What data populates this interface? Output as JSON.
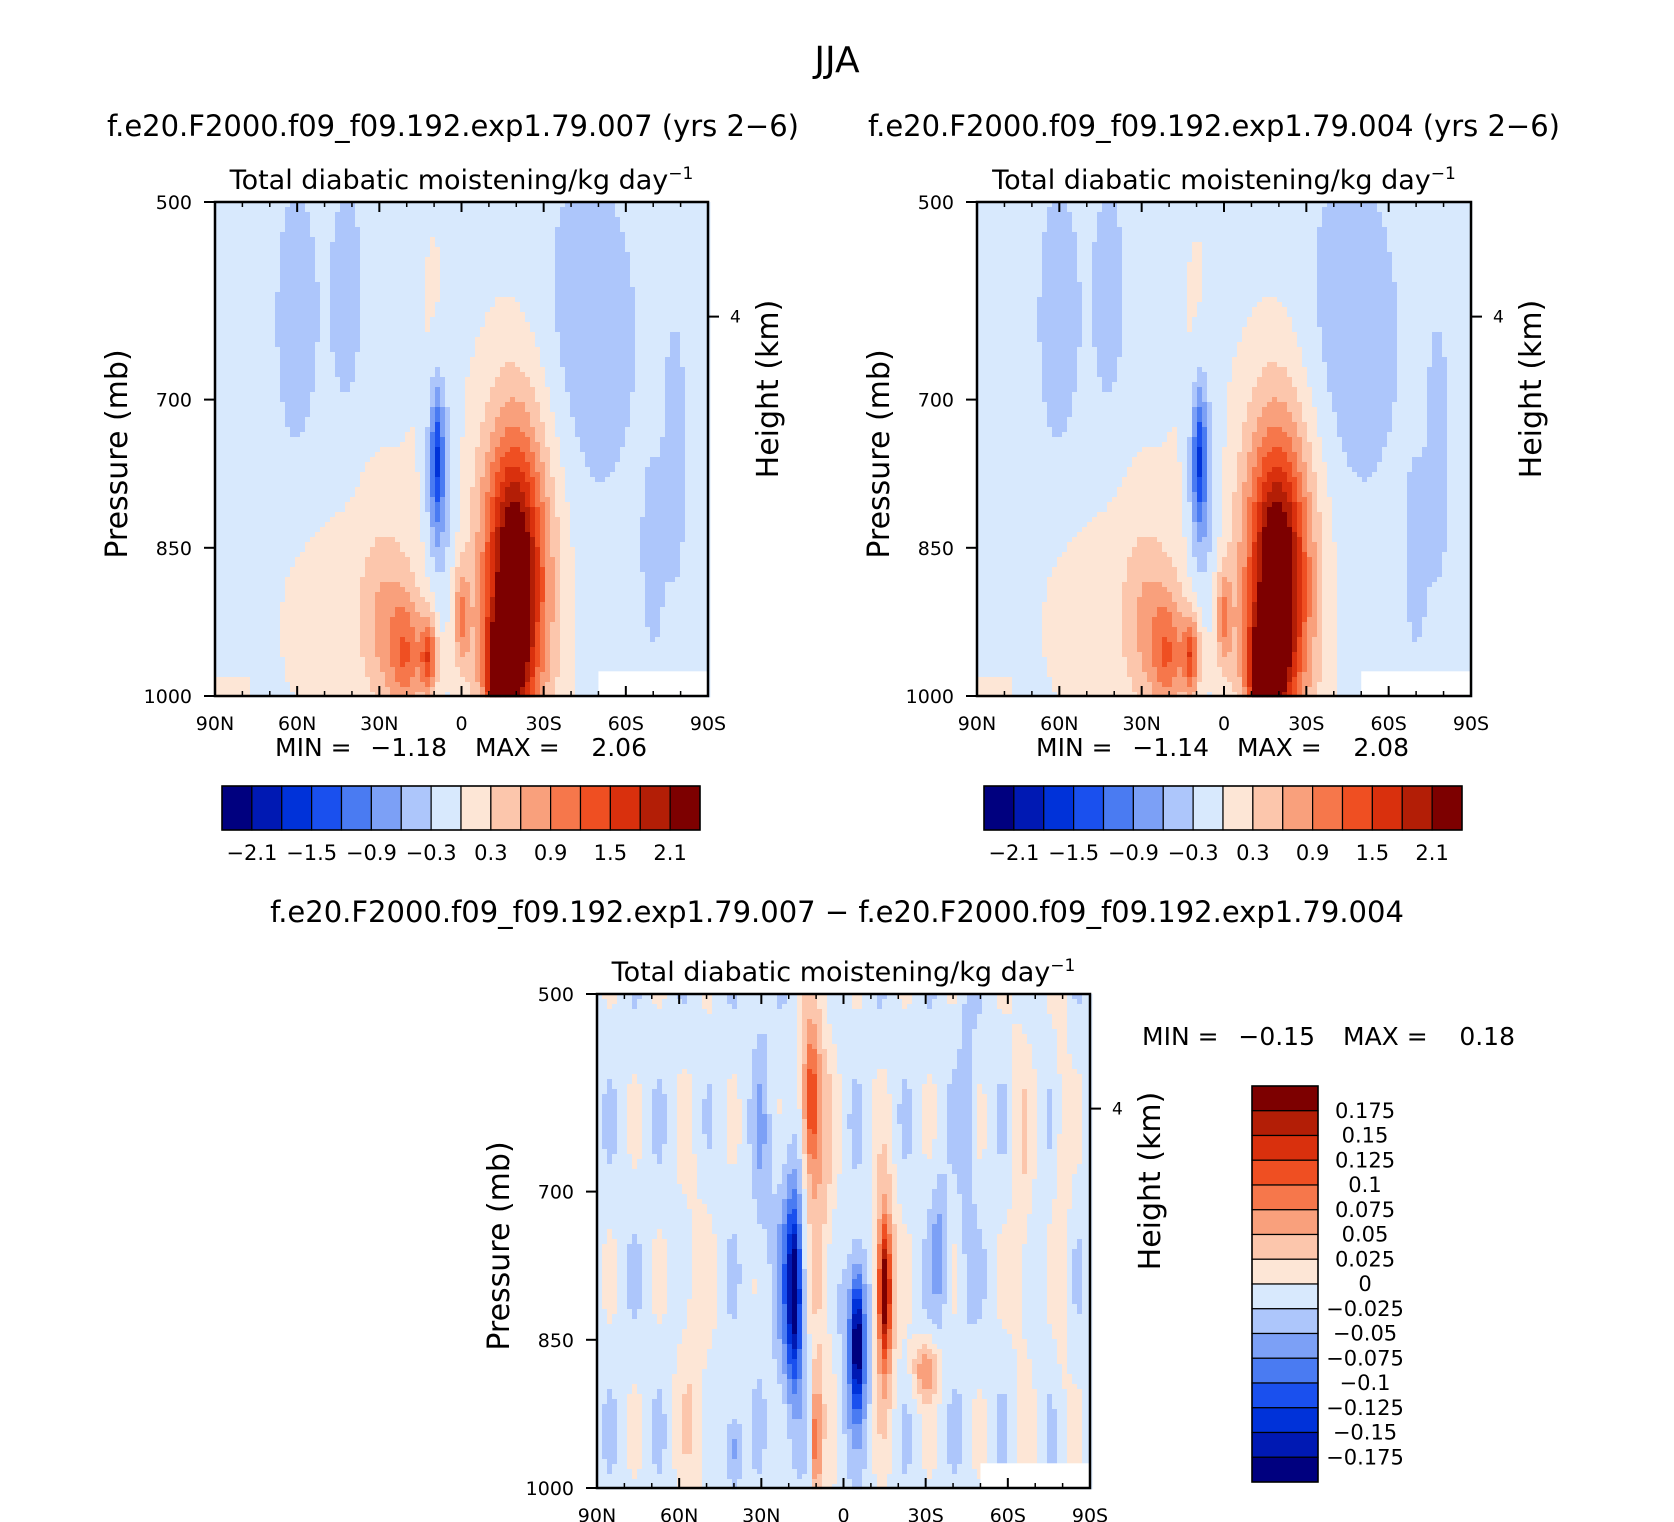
{
  "figure_title": "JJA",
  "chart_data": [
    {
      "type": "heatmap",
      "id": "panel-left",
      "case_label": "f.e20.F2000.f09_f09.192.exp1.79.007 (yrs 2−6)",
      "title": "Total diabatic moistening/kg day",
      "title_sup": "−1",
      "xlabel": "",
      "ylabel": "Pressure (mb)",
      "ylabel_right": "Height (km)",
      "xlim": [
        90,
        -90
      ],
      "ylim": [
        1000,
        500
      ],
      "x_ticks": [
        "90N",
        "60N",
        "30N",
        "0",
        "30S",
        "60S",
        "90S"
      ],
      "x_tick_values": [
        90,
        60,
        30,
        0,
        -30,
        -60,
        -90
      ],
      "y_ticks": [
        "500",
        "700",
        "850",
        "1000"
      ],
      "y_tick_values": [
        500,
        700,
        850,
        1000
      ],
      "right_ticks": [
        "4"
      ],
      "right_tick_pressure": [
        616
      ],
      "stats": {
        "min_label": "MIN =",
        "min": "−1.18",
        "max_label": "MAX =",
        "max": "2.06"
      },
      "colorbar": {
        "orientation": "horizontal",
        "colors": [
          "#00007f",
          "#0019b3",
          "#0032d9",
          "#1a50ee",
          "#4a7bf2",
          "#7ca0f6",
          "#adc6fb",
          "#d8e9fd",
          "#fde6d6",
          "#fcc6ac",
          "#f9a07c",
          "#f6774b",
          "#ef4f22",
          "#d9300d",
          "#b31e06",
          "#7d0000"
        ],
        "labels": [
          "−2.1",
          "−1.5",
          "−0.9",
          "−0.3",
          "0.3",
          "0.9",
          "1.5",
          "2.1"
        ]
      },
      "features": [
        {
          "lat": 60,
          "p": 620,
          "w": 8,
          "h": 140,
          "level": -0.35
        },
        {
          "lat": 42,
          "p": 600,
          "w": 6,
          "h": 120,
          "level": -0.35
        },
        {
          "lat": -45,
          "p": 640,
          "w": 20,
          "h": 180,
          "level": -0.35
        },
        {
          "lat": -70,
          "p": 860,
          "w": 4,
          "h": 90,
          "level": -0.35
        },
        {
          "lat": -78,
          "p": 760,
          "w": 4,
          "h": 130,
          "level": -0.35
        },
        {
          "lat": 28,
          "p": 880,
          "w": 20,
          "h": 170,
          "level": 0.25
        },
        {
          "lat": 10,
          "p": 720,
          "w": 8,
          "h": 260,
          "level": 0.25
        },
        {
          "lat": 55,
          "p": 930,
          "w": 15,
          "h": 110,
          "level": 0.25
        },
        {
          "lat": 8,
          "p": 790,
          "w": 6,
          "h": 120,
          "level": -0.7
        },
        {
          "lat": 9,
          "p": 760,
          "w": 2.5,
          "h": 70,
          "level": -1.1
        },
        {
          "lat": -20,
          "p": 880,
          "w": 17,
          "h": 230,
          "level": 0.65
        },
        {
          "lat": -20,
          "p": 880,
          "w": 13,
          "h": 170,
          "level": 1.0
        },
        {
          "lat": -19,
          "p": 880,
          "w": 9,
          "h": 120,
          "level": 1.35
        },
        {
          "lat": -16,
          "p": 965,
          "w": 7,
          "h": 50,
          "level": 1.7
        },
        {
          "lat": -15,
          "p": 985,
          "w": 4,
          "h": 25,
          "level": 2.0
        },
        {
          "lat": 28,
          "p": 930,
          "w": 9,
          "h": 90,
          "level": 0.6
        },
        {
          "lat": 20,
          "p": 960,
          "w": 6,
          "h": 60,
          "level": 0.95
        },
        {
          "lat": 0,
          "p": 920,
          "w": 3,
          "h": 50,
          "level": 0.9
        },
        {
          "lat": 12,
          "p": 960,
          "w": 3,
          "h": 40,
          "level": 1.3
        }
      ]
    },
    {
      "type": "heatmap",
      "id": "panel-right",
      "case_label": "f.e20.F2000.f09_f09.192.exp1.79.004 (yrs 2−6)",
      "title": "Total diabatic moistening/kg day",
      "title_sup": "−1",
      "xlabel": "",
      "ylabel": "Pressure (mb)",
      "ylabel_right": "Height (km)",
      "xlim": [
        90,
        -90
      ],
      "ylim": [
        1000,
        500
      ],
      "x_ticks": [
        "90N",
        "60N",
        "30N",
        "0",
        "30S",
        "60S",
        "90S"
      ],
      "x_tick_values": [
        90,
        60,
        30,
        0,
        -30,
        -60,
        -90
      ],
      "y_ticks": [
        "500",
        "700",
        "850",
        "1000"
      ],
      "y_tick_values": [
        500,
        700,
        850,
        1000
      ],
      "right_ticks": [
        "4"
      ],
      "right_tick_pressure": [
        616
      ],
      "stats": {
        "min_label": "MIN =",
        "min": "−1.14",
        "max_label": "MAX =",
        "max": "2.08"
      },
      "colorbar": {
        "orientation": "horizontal",
        "colors": [
          "#00007f",
          "#0019b3",
          "#0032d9",
          "#1a50ee",
          "#4a7bf2",
          "#7ca0f6",
          "#adc6fb",
          "#d8e9fd",
          "#fde6d6",
          "#fcc6ac",
          "#f9a07c",
          "#f6774b",
          "#ef4f22",
          "#d9300d",
          "#b31e06",
          "#7d0000"
        ],
        "labels": [
          "−2.1",
          "−1.5",
          "−0.9",
          "−0.3",
          "0.3",
          "0.9",
          "1.5",
          "2.1"
        ]
      },
      "features": [
        {
          "lat": 60,
          "p": 620,
          "w": 8,
          "h": 140,
          "level": -0.35
        },
        {
          "lat": 42,
          "p": 600,
          "w": 6,
          "h": 120,
          "level": -0.35
        },
        {
          "lat": -45,
          "p": 640,
          "w": 20,
          "h": 180,
          "level": -0.35
        },
        {
          "lat": -70,
          "p": 860,
          "w": 4,
          "h": 90,
          "level": -0.35
        },
        {
          "lat": -78,
          "p": 760,
          "w": 4,
          "h": 130,
          "level": -0.35
        },
        {
          "lat": 28,
          "p": 880,
          "w": 20,
          "h": 170,
          "level": 0.25
        },
        {
          "lat": 10,
          "p": 720,
          "w": 8,
          "h": 260,
          "level": 0.25
        },
        {
          "lat": 55,
          "p": 930,
          "w": 15,
          "h": 110,
          "level": 0.25
        },
        {
          "lat": 8,
          "p": 790,
          "w": 6,
          "h": 120,
          "level": -0.7
        },
        {
          "lat": 9,
          "p": 760,
          "w": 2.5,
          "h": 70,
          "level": -1.1
        },
        {
          "lat": -20,
          "p": 880,
          "w": 17,
          "h": 230,
          "level": 0.65
        },
        {
          "lat": -20,
          "p": 880,
          "w": 13,
          "h": 170,
          "level": 1.0
        },
        {
          "lat": -19,
          "p": 880,
          "w": 9,
          "h": 120,
          "level": 1.35
        },
        {
          "lat": -16,
          "p": 965,
          "w": 7,
          "h": 50,
          "level": 1.7
        },
        {
          "lat": -15,
          "p": 985,
          "w": 4,
          "h": 25,
          "level": 2.05
        },
        {
          "lat": 28,
          "p": 930,
          "w": 9,
          "h": 90,
          "level": 0.6
        },
        {
          "lat": 20,
          "p": 960,
          "w": 6,
          "h": 60,
          "level": 0.95
        },
        {
          "lat": 0,
          "p": 920,
          "w": 3,
          "h": 50,
          "level": 0.9
        },
        {
          "lat": 12,
          "p": 960,
          "w": 3,
          "h": 40,
          "level": 1.3
        }
      ]
    },
    {
      "type": "heatmap",
      "id": "panel-diff",
      "case_label": "f.e20.F2000.f09_f09.192.exp1.79.007 − f.e20.F2000.f09_f09.192.exp1.79.004",
      "title": "Total diabatic moistening/kg day",
      "title_sup": "−1",
      "xlabel": "",
      "ylabel": "Pressure (mb)",
      "ylabel_right": "Height (km)",
      "xlim": [
        90,
        -90
      ],
      "ylim": [
        1000,
        500
      ],
      "x_ticks": [
        "90N",
        "60N",
        "30N",
        "0",
        "30S",
        "60S",
        "90S"
      ],
      "x_tick_values": [
        90,
        60,
        30,
        0,
        -30,
        -60,
        -90
      ],
      "y_ticks": [
        "500",
        "700",
        "850",
        "1000"
      ],
      "y_tick_values": [
        500,
        700,
        850,
        1000
      ],
      "right_ticks": [
        "4"
      ],
      "right_tick_pressure": [
        616
      ],
      "stats": {
        "min_label": "MIN =",
        "min": "−0.15",
        "max_label": "MAX =",
        "max": "0.18"
      },
      "colorbar": {
        "orientation": "vertical",
        "colors": [
          "#7d0000",
          "#b31e06",
          "#d9300d",
          "#ef4f22",
          "#f6774b",
          "#f9a07c",
          "#fcc6ac",
          "#fde6d6",
          "#d8e9fd",
          "#adc6fb",
          "#7ca0f6",
          "#4a7bf2",
          "#1a50ee",
          "#0032d9",
          "#0019b3",
          "#00007f"
        ],
        "labels": [
          "0.175",
          "0.15",
          "0.125",
          "0.1",
          "0.075",
          "0.05",
          "0.025",
          "0",
          "−0.025",
          "−0.05",
          "−0.075",
          "−0.1",
          "−0.125",
          "−0.15",
          "−0.175"
        ]
      },
      "features": [
        {
          "lat": 10,
          "p": 700,
          "w": 6,
          "h": 240,
          "level": 0.06
        },
        {
          "lat": 12,
          "p": 610,
          "w": 3,
          "h": 70,
          "level": 0.11
        },
        {
          "lat": -15,
          "p": 800,
          "w": 4,
          "h": 120,
          "level": 0.1
        },
        {
          "lat": -15,
          "p": 800,
          "w": 2,
          "h": 60,
          "level": 0.15
        },
        {
          "lat": -30,
          "p": 880,
          "w": 5,
          "h": 30,
          "level": 0.08
        },
        {
          "lat": 10,
          "p": 950,
          "w": 2,
          "h": 60,
          "level": 0.1
        },
        {
          "lat": 18,
          "p": 800,
          "w": 6,
          "h": 140,
          "level": -0.08
        },
        {
          "lat": 18,
          "p": 800,
          "w": 2.5,
          "h": 80,
          "level": -0.13
        },
        {
          "lat": -5,
          "p": 850,
          "w": 5,
          "h": 90,
          "level": -0.08
        },
        {
          "lat": -5,
          "p": 850,
          "w": 2,
          "h": 60,
          "level": -0.13
        },
        {
          "lat": 40,
          "p": 960,
          "w": 3,
          "h": 40,
          "level": -0.06
        },
        {
          "lat": -35,
          "p": 760,
          "w": 3,
          "h": 70,
          "level": -0.05
        },
        {
          "lat": 55,
          "p": 880,
          "w": 6,
          "h": 200,
          "level": 0.03
        },
        {
          "lat": -65,
          "p": 700,
          "w": 4,
          "h": 220,
          "level": 0.03
        },
        {
          "lat": -80,
          "p": 700,
          "w": 3,
          "h": 220,
          "level": 0.03
        },
        {
          "lat": 30,
          "p": 650,
          "w": 3,
          "h": 150,
          "level": -0.03
        },
        {
          "lat": -45,
          "p": 640,
          "w": 3,
          "h": 180,
          "level": -0.03
        }
      ]
    }
  ]
}
